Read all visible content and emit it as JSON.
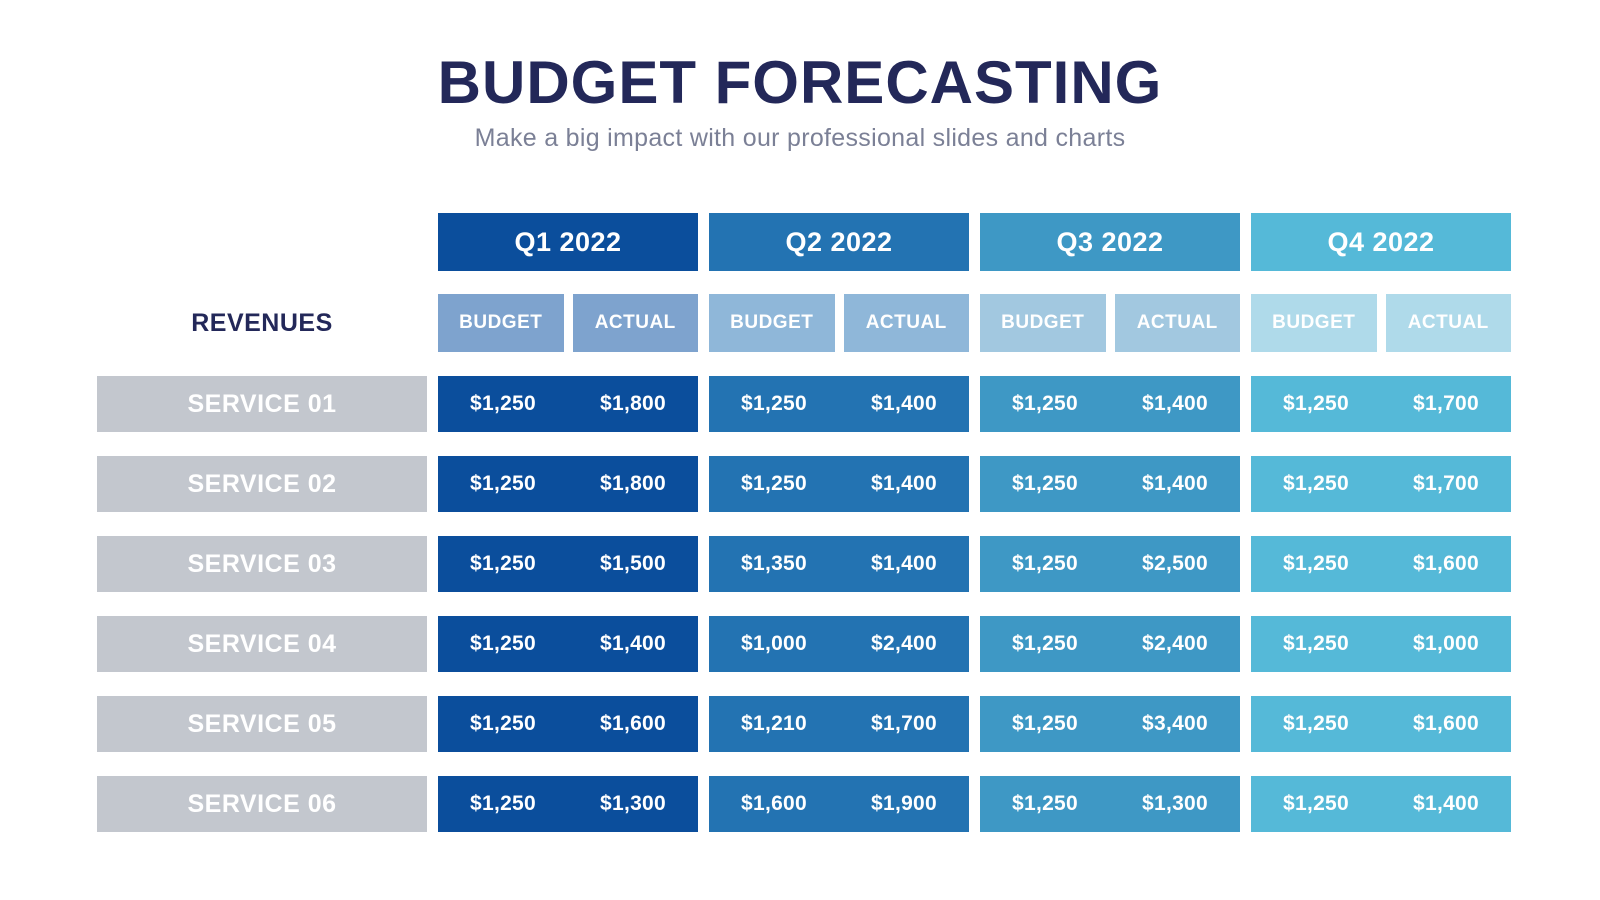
{
  "title": "BUDGET FORECASTING",
  "subtitle": "Make a big impact with our professional slides and charts",
  "colors": {
    "title_text": "#232859",
    "subtitle_text": "#7b8096",
    "q1_header": "#0b4e9c",
    "q2_header": "#2373b2",
    "q3_header": "#3e98c5",
    "q4_header": "#55b9d8",
    "q1_subheader": "#7ea3ce",
    "q2_subheader": "#8fb7d9",
    "q3_subheader": "#a2c8e0",
    "q4_subheader": "#afdaea",
    "row_label_bg": "#c3c7ce",
    "cell_text": "#ffffff"
  },
  "table": {
    "section_label": "REVENUES",
    "quarters": [
      "Q1 2022",
      "Q2 2022",
      "Q3 2022",
      "Q4 2022"
    ],
    "sub_headers": [
      "BUDGET",
      "ACTUAL"
    ],
    "rows": [
      {
        "label": "SERVICE 01",
        "cells": [
          "$1,250",
          "$1,800",
          "$1,250",
          "$1,400",
          "$1,250",
          "$1,400",
          "$1,250",
          "$1,700"
        ]
      },
      {
        "label": "SERVICE 02",
        "cells": [
          "$1,250",
          "$1,800",
          "$1,250",
          "$1,400",
          "$1,250",
          "$1,400",
          "$1,250",
          "$1,700"
        ]
      },
      {
        "label": "SERVICE 03",
        "cells": [
          "$1,250",
          "$1,500",
          "$1,350",
          "$1,400",
          "$1,250",
          "$2,500",
          "$1,250",
          "$1,600"
        ]
      },
      {
        "label": "SERVICE 04",
        "cells": [
          "$1,250",
          "$1,400",
          "$1,000",
          "$2,400",
          "$1,250",
          "$2,400",
          "$1,250",
          "$1,000"
        ]
      },
      {
        "label": "SERVICE 05",
        "cells": [
          "$1,250",
          "$1,600",
          "$1,210",
          "$1,700",
          "$1,250",
          "$3,400",
          "$1,250",
          "$1,600"
        ]
      },
      {
        "label": "SERVICE 06",
        "cells": [
          "$1,250",
          "$1,300",
          "$1,600",
          "$1,900",
          "$1,250",
          "$1,300",
          "$1,250",
          "$1,400"
        ]
      }
    ]
  },
  "chart_data": {
    "type": "table",
    "title": "BUDGET FORECASTING",
    "subtitle": "Make a big impact with our professional slides and charts",
    "row_group_label": "REVENUES",
    "column_groups": [
      "Q1 2022",
      "Q2 2022",
      "Q3 2022",
      "Q4 2022"
    ],
    "columns": [
      "Q1 2022 BUDGET",
      "Q1 2022 ACTUAL",
      "Q2 2022 BUDGET",
      "Q2 2022 ACTUAL",
      "Q3 2022 BUDGET",
      "Q3 2022 ACTUAL",
      "Q4 2022 BUDGET",
      "Q4 2022 ACTUAL"
    ],
    "rows": [
      {
        "label": "SERVICE 01",
        "values": [
          1250,
          1800,
          1250,
          1400,
          1250,
          1400,
          1250,
          1700
        ]
      },
      {
        "label": "SERVICE 02",
        "values": [
          1250,
          1800,
          1250,
          1400,
          1250,
          1400,
          1250,
          1700
        ]
      },
      {
        "label": "SERVICE 03",
        "values": [
          1250,
          1500,
          1350,
          1400,
          1250,
          2500,
          1250,
          1600
        ]
      },
      {
        "label": "SERVICE 04",
        "values": [
          1250,
          1400,
          1000,
          2400,
          1250,
          2400,
          1250,
          1000
        ]
      },
      {
        "label": "SERVICE 05",
        "values": [
          1250,
          1600,
          1210,
          1700,
          1250,
          3400,
          1250,
          1600
        ]
      },
      {
        "label": "SERVICE 06",
        "values": [
          1250,
          1300,
          1600,
          1900,
          1250,
          1300,
          1250,
          1400
        ]
      }
    ],
    "currency": "USD",
    "units": "dollars"
  }
}
